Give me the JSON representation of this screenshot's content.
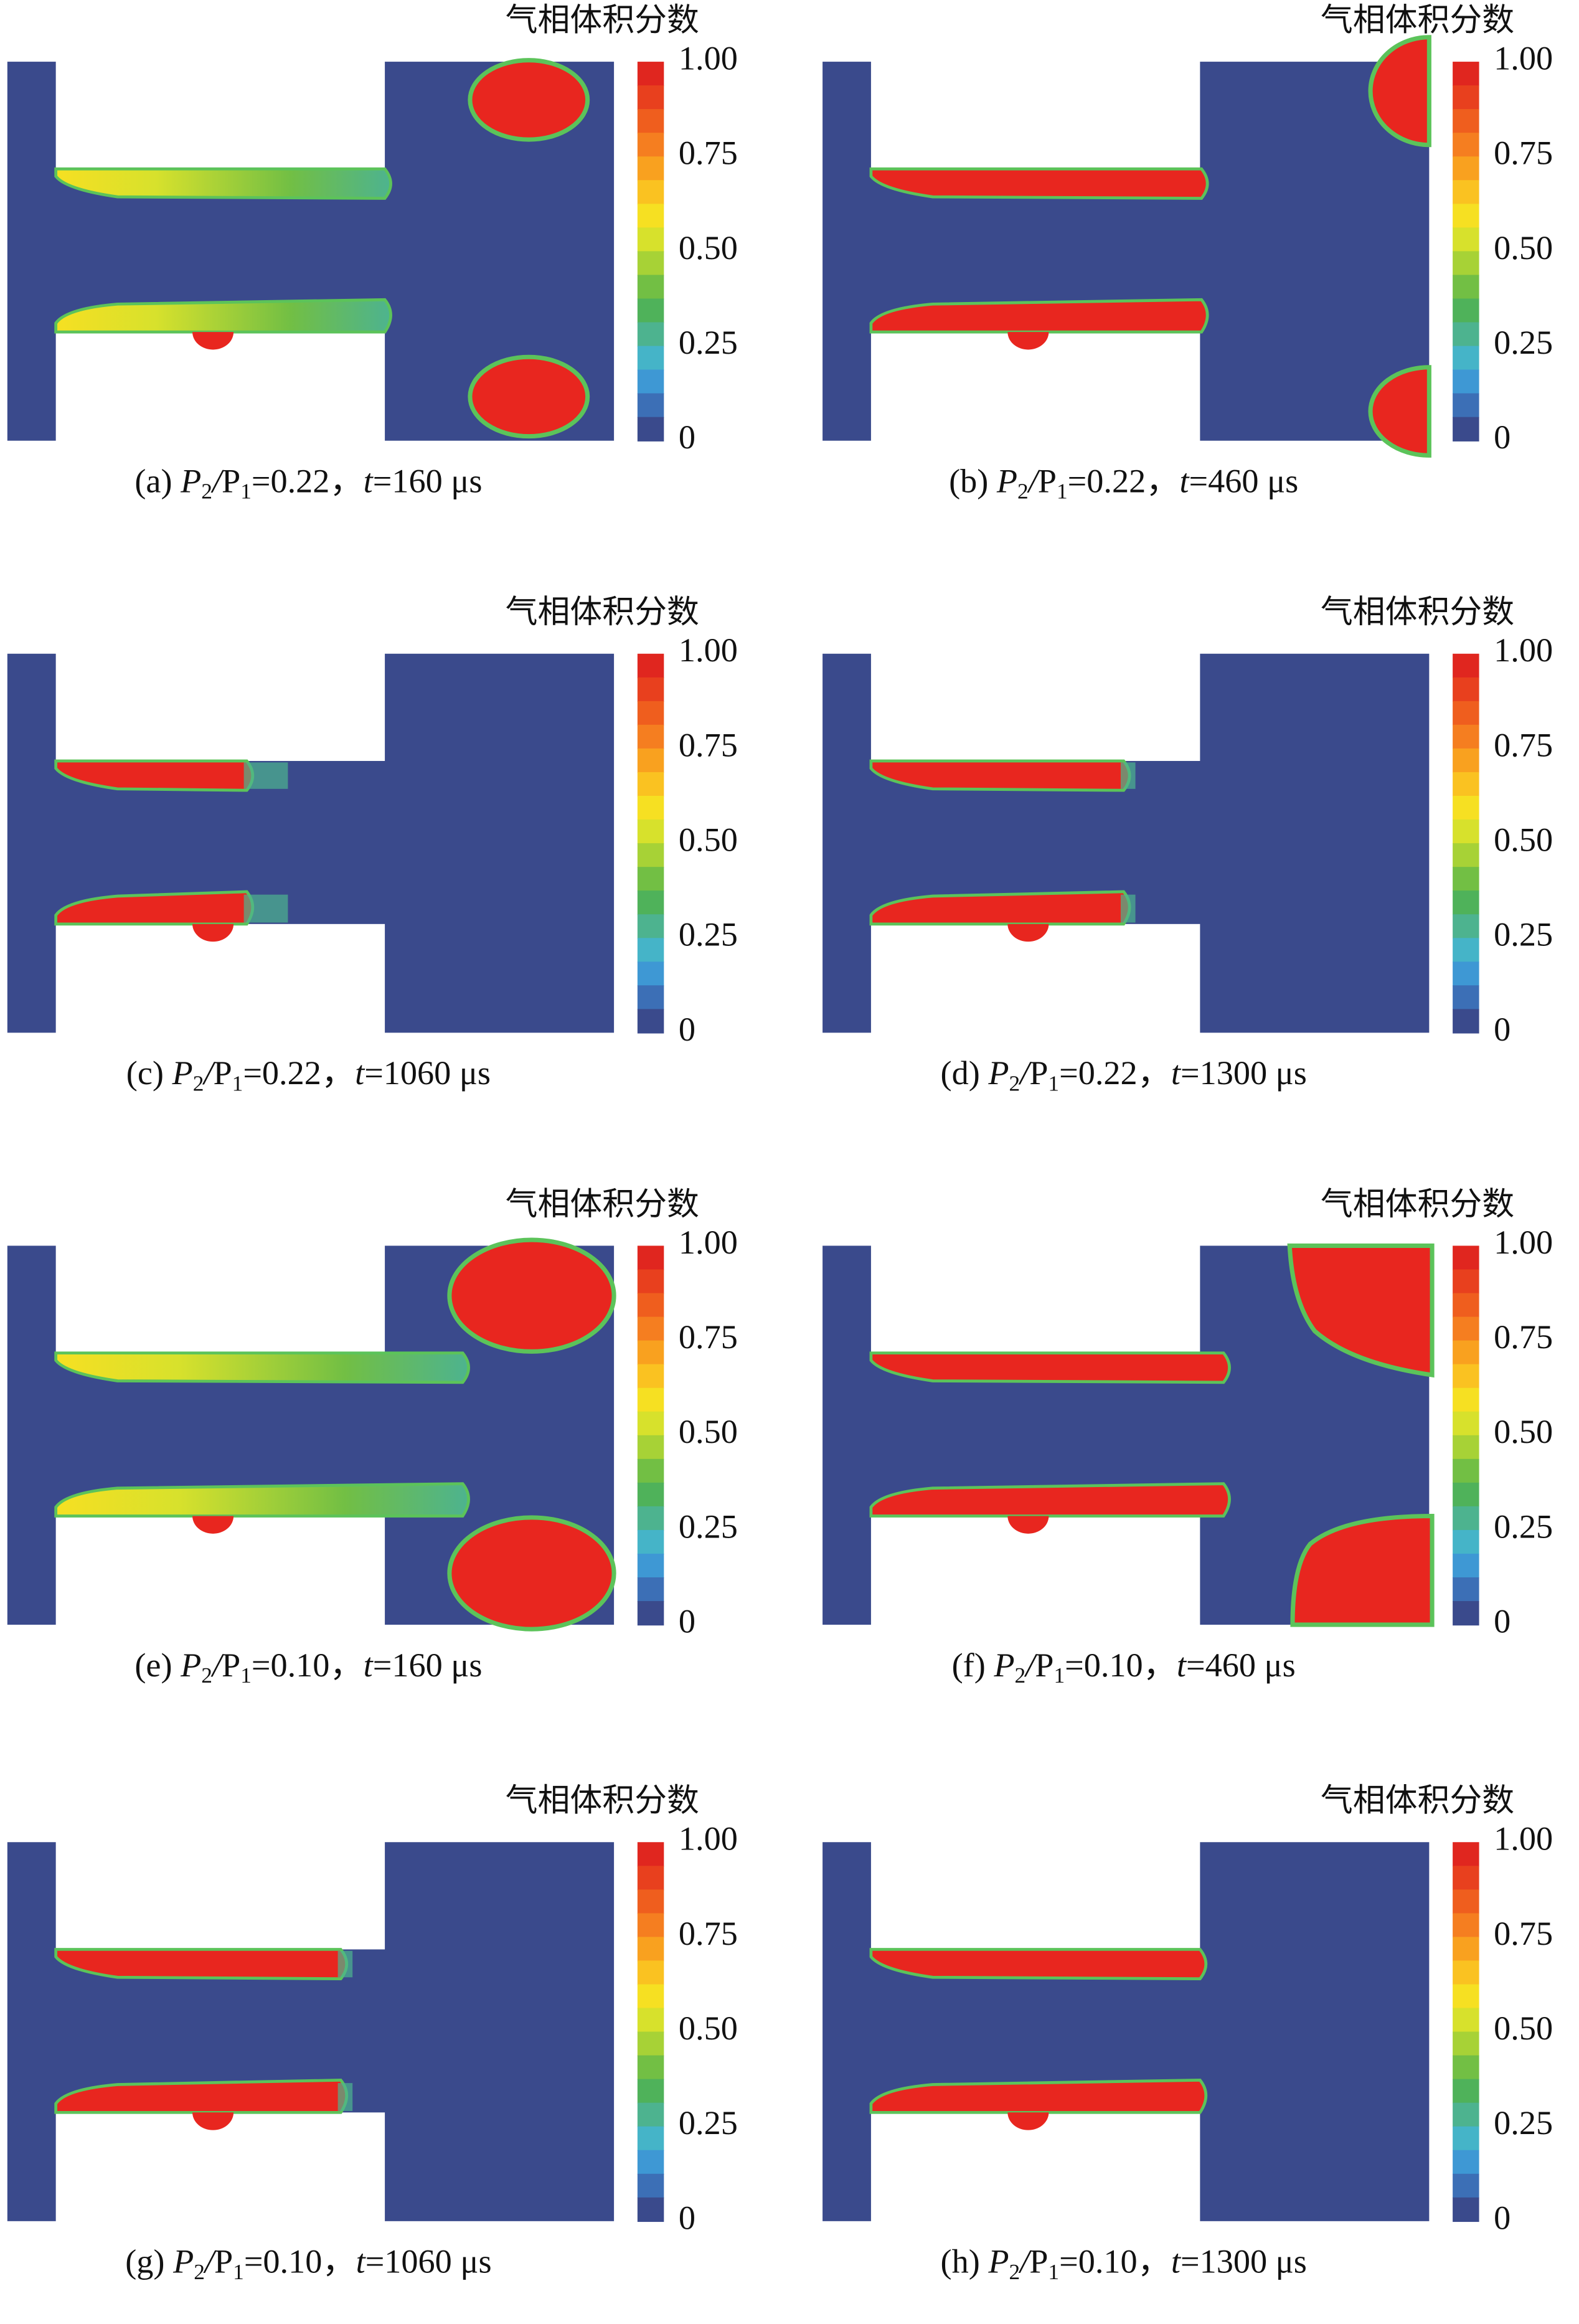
{
  "colorbar": {
    "title": "气相体积分数",
    "ticks": [
      "1.00",
      "0.75",
      "0.50",
      "0.25",
      "0"
    ],
    "colors": [
      "#e0261f",
      "#e8401e",
      "#ef5e1e",
      "#f57e20",
      "#f9a11f",
      "#fac221",
      "#f6e022",
      "#d7e12c",
      "#a7d236",
      "#72bf44",
      "#4fb25a",
      "#4db38f",
      "#45b4c8",
      "#3e98d4",
      "#3c6fb6",
      "#3a4a8c"
    ]
  },
  "panels": [
    {
      "caption": [
        "(a) ",
        "P",
        "2",
        "/",
        "P",
        "1",
        "=0.22，",
        "t",
        "=160 μs"
      ]
    },
    {
      "caption": [
        "(b) ",
        "P",
        "2",
        "/",
        "P",
        "1",
        "=0.22，",
        "t",
        "=460 μs"
      ]
    },
    {
      "caption": [
        "(c) ",
        "P",
        "2",
        "/",
        "P",
        "1",
        "=0.22，",
        "t",
        "=1060 μs"
      ]
    },
    {
      "caption": [
        "(d) ",
        "P",
        "2",
        "/",
        "P",
        "1",
        "=0.22，",
        "t",
        "=1300 μs"
      ]
    },
    {
      "caption": [
        "(e) ",
        "P",
        "2",
        "/",
        "P",
        "1",
        "=0.10，",
        "t",
        "=160 μs"
      ]
    },
    {
      "caption": [
        "(f) ",
        "P",
        "2",
        "/",
        "P",
        "1",
        "=0.10，",
        "t",
        "=460 μs"
      ]
    },
    {
      "caption": [
        "(g) ",
        "P",
        "2",
        "/",
        "P",
        "1",
        "=0.10，",
        "t",
        "=1060 μs"
      ]
    },
    {
      "caption": [
        "(h) ",
        "P",
        "2",
        "/",
        "P",
        "1",
        "=0.10，",
        "t",
        "=1300 μs"
      ]
    }
  ]
}
